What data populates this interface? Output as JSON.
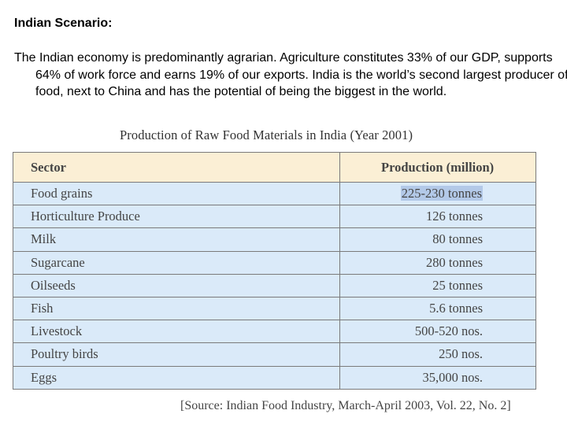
{
  "heading": "Indian Scenario:",
  "paragraph": "The Indian economy is predominantly agrarian. Agriculture constitutes 33% of our GDP, supports 64% of work  force and earns 19% of our exports. India is the world’s second largest producer of food, next  to China and has the potential of being the biggest in the world.",
  "table": {
    "title": "Production of Raw Food Materials in India (Year 2001)",
    "headers": [
      "Sector",
      "Production (million)"
    ],
    "rows": [
      {
        "sector": "Food grains",
        "value": "225-230 tonnes"
      },
      {
        "sector": "Horticulture Produce",
        "value": "126 tonnes"
      },
      {
        "sector": "Milk",
        "value": "80 tonnes"
      },
      {
        "sector": "Sugarcane",
        "value": "280 tonnes"
      },
      {
        "sector": "Oilseeds",
        "value": "25 tonnes"
      },
      {
        "sector": "Fish",
        "value": "5.6 tonnes"
      },
      {
        "sector": "Livestock",
        "value": "500-520 nos."
      },
      {
        "sector": "Poultry birds",
        "value": "250 nos."
      },
      {
        "sector": "Eggs",
        "value": "35,000 nos."
      }
    ],
    "source": "[Source: Indian Food Industry, March-April 2003, Vol. 22, No. 2]"
  }
}
